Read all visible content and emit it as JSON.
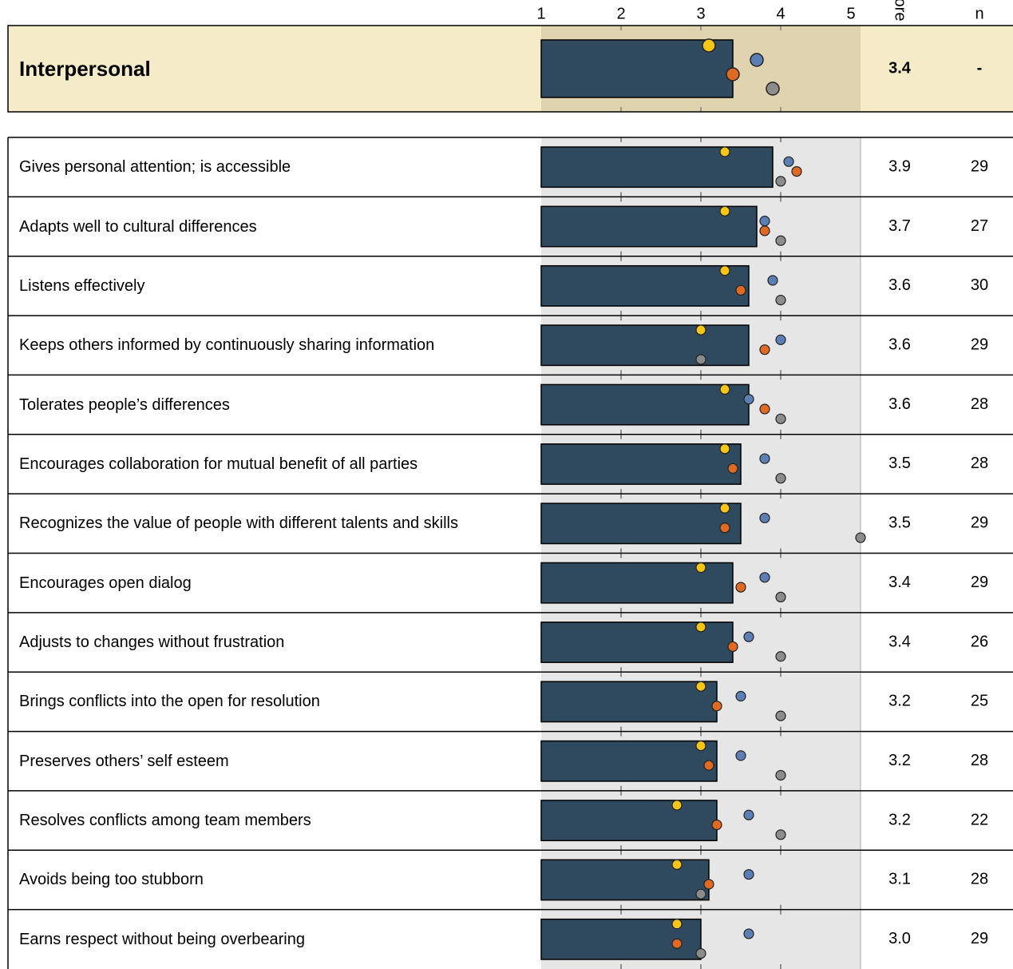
{
  "chart_data": {
    "type": "dot-bar",
    "columns": [
      "ore",
      "n"
    ],
    "xlim": [
      1,
      5
    ],
    "xticks": [
      1,
      2,
      3,
      4,
      5
    ],
    "bar_color": "#2f4a5e",
    "summary": {
      "label": "Interpersonal",
      "value": 3.4,
      "value_label": "3.4",
      "n": "-",
      "markers": [
        3.1,
        3.7,
        3.4,
        3.9
      ]
    },
    "categories": [
      "Gives personal attention; is accessible",
      "Adapts well to cultural differences",
      "Listens effectively",
      "Keeps others informed by continuously sharing information",
      "Tolerates people’s differences",
      "Encourages collaboration for mutual benefit of all parties",
      "Recognizes the value of people with different talents and skills",
      "Encourages open dialog",
      "Adjusts to changes without frustration",
      "Brings conflicts into the open for resolution",
      "Preserves others’ self esteem",
      "Resolves conflicts among team members",
      "Avoids being too stubborn",
      "Earns respect without being overbearing"
    ],
    "values": [
      3.9,
      3.7,
      3.6,
      3.6,
      3.6,
      3.5,
      3.5,
      3.4,
      3.4,
      3.2,
      3.2,
      3.2,
      3.1,
      3.0
    ],
    "value_labels": [
      "3.9",
      "3.7",
      "3.6",
      "3.6",
      "3.6",
      "3.5",
      "3.5",
      "3.4",
      "3.4",
      "3.2",
      "3.2",
      "3.2",
      "3.1",
      "3.0"
    ],
    "n": [
      29,
      27,
      30,
      29,
      28,
      28,
      29,
      29,
      26,
      25,
      28,
      22,
      28,
      29
    ],
    "series": [
      {
        "color": "#f5c518",
        "values": [
          3.3,
          3.3,
          3.3,
          3.0,
          3.3,
          3.3,
          3.3,
          3.0,
          3.0,
          3.0,
          3.0,
          2.7,
          2.7,
          2.7
        ]
      },
      {
        "color": "#5b7fb5",
        "values": [
          4.1,
          3.8,
          3.9,
          4.0,
          3.6,
          3.8,
          3.8,
          3.8,
          3.6,
          3.5,
          3.5,
          3.6,
          3.6,
          3.6
        ]
      },
      {
        "color": "#e06a24",
        "values": [
          4.2,
          3.8,
          3.5,
          3.8,
          3.8,
          3.4,
          3.3,
          3.5,
          3.4,
          3.2,
          3.1,
          3.2,
          3.1,
          2.7
        ]
      },
      {
        "color": "#8c8c8c",
        "values": [
          4.0,
          4.0,
          4.0,
          3.0,
          4.0,
          4.0,
          5.0,
          4.0,
          4.0,
          4.0,
          4.0,
          4.0,
          3.0,
          3.0
        ]
      }
    ]
  }
}
